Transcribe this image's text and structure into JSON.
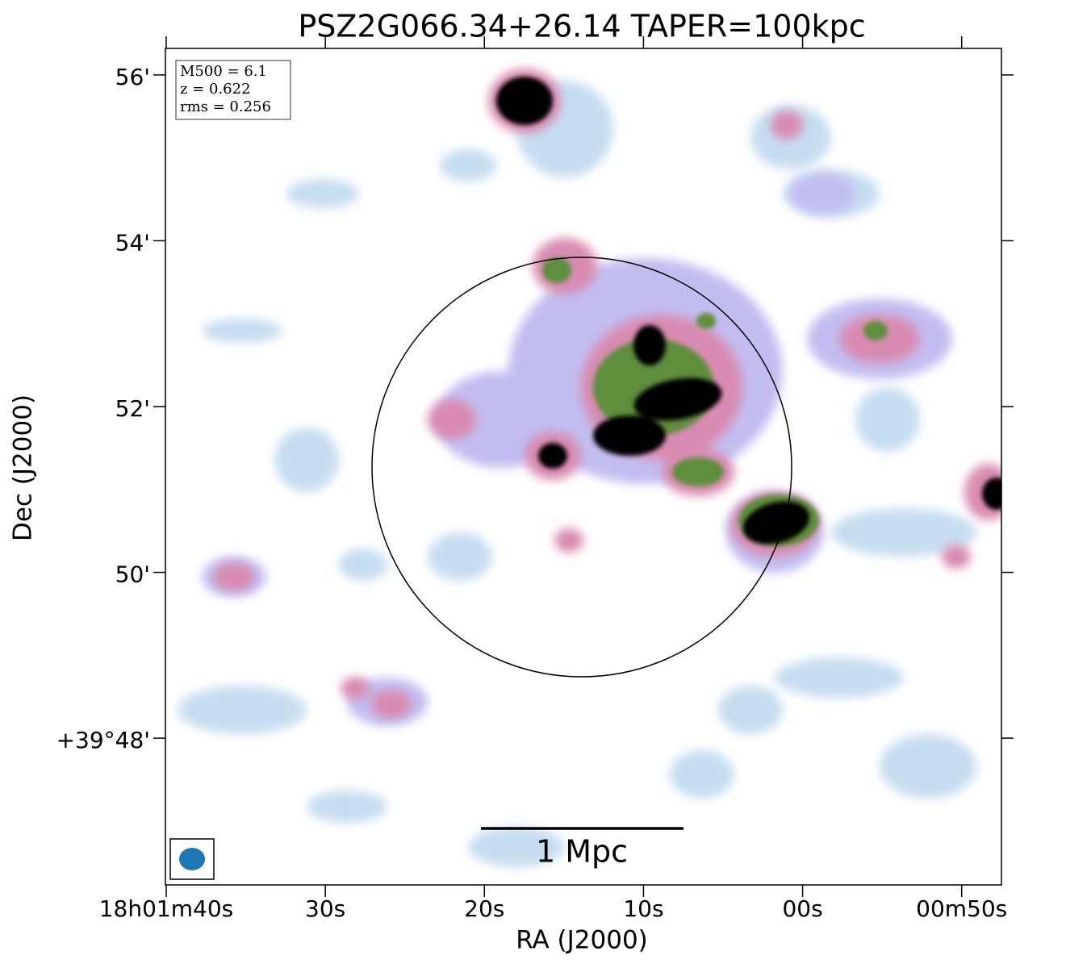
{
  "chart_data": {
    "type": "image",
    "title": "PSZ2G066.34+26.14 TAPER=100kpc",
    "xlabel": "RA (J2000)",
    "ylabel": "Dec (J2000)",
    "xlim": [
      100.05,
      47.5
    ],
    "ylim": [
      46.23,
      56.32
    ],
    "xticks": [
      {
        "value": 100,
        "label": "18h01m40s"
      },
      {
        "value": 90,
        "label": "30s"
      },
      {
        "value": 80,
        "label": "20s"
      },
      {
        "value": 70,
        "label": "10s"
      },
      {
        "value": 60,
        "label": "00s"
      },
      {
        "value": 50,
        "label": "00m50s"
      }
    ],
    "yticks": [
      {
        "value": 56,
        "label": "56'"
      },
      {
        "value": 54,
        "label": "54'"
      },
      {
        "value": 52,
        "label": "52'"
      },
      {
        "value": 50,
        "label": "50'"
      },
      {
        "value": 48,
        "label": "+39°48'"
      }
    ],
    "annotations": [
      "M500 = 6.1",
      "z = 0.622",
      "rms = 0.256"
    ],
    "scalebar_label": "1 Mpc"
  }
}
